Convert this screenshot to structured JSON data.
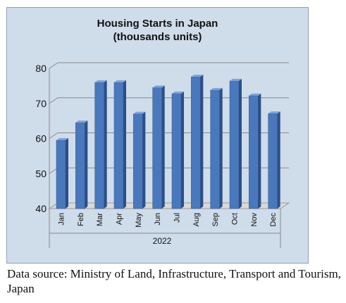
{
  "chart_data": {
    "type": "bar",
    "title_line1": "Housing Starts in Japan",
    "title_line2": "(thousands units)",
    "categories": [
      "Jan",
      "Feb",
      "Mar",
      "Apr",
      "May",
      "Jun",
      "Jul",
      "Aug",
      "Sep",
      "Oct",
      "Nov",
      "Dec"
    ],
    "values": [
      59.5,
      64.5,
      76,
      76,
      67,
      74.5,
      72.8,
      77.6,
      73.8,
      76.4,
      72.2,
      67.1
    ],
    "ylim": [
      40,
      80
    ],
    "yticks": [
      40,
      50,
      60,
      70,
      80
    ],
    "xlabel": "2022",
    "ylabel": "",
    "grid": true,
    "legend": "none",
    "bar_color": "#4a78bd",
    "bar_side_color": "#2c4f86",
    "bar_top_color": "#7ea3d8"
  },
  "source_note": "Data source: Ministry of Land, Infrastructure, Transport and Tourism, Japan",
  "colors": {
    "plot_background": "#cfdcea",
    "gridline": "#8a8a8a"
  }
}
